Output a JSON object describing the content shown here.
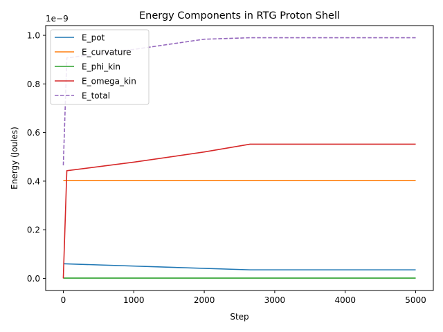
{
  "chart_data": {
    "type": "line",
    "title": "Energy Components in RTG Proton Shell",
    "xlabel": "Step",
    "ylabel": "Energy (Joules)",
    "y_offset_label": "1e−9",
    "xlim": [
      -250,
      5250
    ],
    "ylim": [
      -0.05,
      1.04
    ],
    "xticks": [
      0,
      1000,
      2000,
      3000,
      4000,
      5000
    ],
    "xtick_labels": [
      "0",
      "1000",
      "2000",
      "3000",
      "4000",
      "5000"
    ],
    "yticks": [
      0.0,
      0.2,
      0.4,
      0.6,
      0.8,
      1.0
    ],
    "ytick_labels": [
      "0.0",
      "0.2",
      "0.4",
      "0.6",
      "0.8",
      "1.0"
    ],
    "legend_position": "top-left",
    "series": [
      {
        "name": "E_pot",
        "color": "#1f77b4",
        "style": "solid",
        "x": [
          0,
          2650,
          5000
        ],
        "y": [
          0.06,
          0.035,
          0.035
        ]
      },
      {
        "name": "E_curvature",
        "color": "#ff7f0e",
        "style": "solid",
        "x": [
          0,
          5000
        ],
        "y": [
          0.403,
          0.403
        ]
      },
      {
        "name": "E_phi_kin",
        "color": "#2ca02c",
        "style": "solid",
        "x": [
          0,
          5000
        ],
        "y": [
          0.001,
          0.001
        ]
      },
      {
        "name": "E_omega_kin",
        "color": "#d62728",
        "style": "solid",
        "x": [
          0,
          50,
          1000,
          2000,
          2650,
          5000
        ],
        "y": [
          0.0,
          0.443,
          0.478,
          0.52,
          0.552,
          0.552
        ]
      },
      {
        "name": "E_total",
        "color": "#9467bd",
        "style": "dashed",
        "x": [
          0,
          50,
          1000,
          2000,
          2650,
          5000
        ],
        "y": [
          0.465,
          0.907,
          0.942,
          0.984,
          0.99,
          0.99
        ]
      }
    ]
  }
}
